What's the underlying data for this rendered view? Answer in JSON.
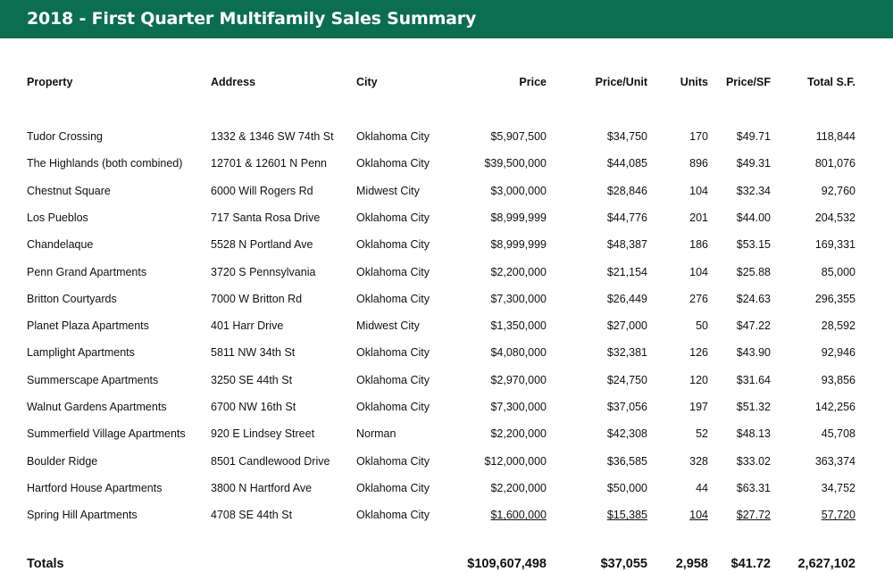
{
  "title": "2018 - First Quarter Multifamily Sales Summary",
  "colors": {
    "title_bar": "#0b6e4f",
    "title_text": "#ffffff"
  },
  "columns": {
    "property": "Property",
    "address": "Address",
    "city": "City",
    "price": "Price",
    "price_per_unit": "Price/Unit",
    "units": "Units",
    "price_per_sf": "Price/SF",
    "total_sf": "Total S.F."
  },
  "rows": [
    {
      "property": "Tudor Crossing",
      "address": "1332 & 1346 SW 74th St",
      "city": "Oklahoma City",
      "price": "$5,907,500",
      "price_per_unit": "$34,750",
      "units": "170",
      "price_per_sf": "$49.71",
      "total_sf": "118,844"
    },
    {
      "property": "The Highlands (both combined)",
      "address": "12701 & 12601 N Penn",
      "city": "Oklahoma City",
      "price": "$39,500,000",
      "price_per_unit": "$44,085",
      "units": "896",
      "price_per_sf": "$49.31",
      "total_sf": "801,076"
    },
    {
      "property": "Chestnut Square",
      "address": "6000 Will Rogers Rd",
      "city": "Midwest City",
      "price": "$3,000,000",
      "price_per_unit": "$28,846",
      "units": "104",
      "price_per_sf": "$32.34",
      "total_sf": "92,760"
    },
    {
      "property": "Los Pueblos",
      "address": "717 Santa Rosa Drive",
      "city": "Oklahoma City",
      "price": "$8,999,999",
      "price_per_unit": "$44,776",
      "units": "201",
      "price_per_sf": "$44.00",
      "total_sf": "204,532"
    },
    {
      "property": "Chandelaque",
      "address": "5528 N Portland Ave",
      "city": "Oklahoma City",
      "price": "$8,999,999",
      "price_per_unit": "$48,387",
      "units": "186",
      "price_per_sf": "$53.15",
      "total_sf": "169,331"
    },
    {
      "property": "Penn Grand Apartments",
      "address": "3720 S Pennsylvania",
      "city": "Oklahoma City",
      "price": "$2,200,000",
      "price_per_unit": "$21,154",
      "units": "104",
      "price_per_sf": "$25.88",
      "total_sf": "85,000"
    },
    {
      "property": "Britton Courtyards",
      "address": "7000 W Britton Rd",
      "city": "Oklahoma City",
      "price": "$7,300,000",
      "price_per_unit": "$26,449",
      "units": "276",
      "price_per_sf": "$24.63",
      "total_sf": "296,355"
    },
    {
      "property": "Planet Plaza Apartments",
      "address": "401 Harr Drive",
      "city": "Midwest City",
      "price": "$1,350,000",
      "price_per_unit": "$27,000",
      "units": "50",
      "price_per_sf": "$47.22",
      "total_sf": "28,592"
    },
    {
      "property": "Lamplight Apartments",
      "address": "5811 NW 34th St",
      "city": "Oklahoma City",
      "price": "$4,080,000",
      "price_per_unit": "$32,381",
      "units": "126",
      "price_per_sf": "$43.90",
      "total_sf": "92,946"
    },
    {
      "property": "Summerscape Apartments",
      "address": "3250 SE 44th St",
      "city": "Oklahoma City",
      "price": "$2,970,000",
      "price_per_unit": "$24,750",
      "units": "120",
      "price_per_sf": "$31.64",
      "total_sf": "93,856"
    },
    {
      "property": "Walnut Gardens Apartments",
      "address": "6700 NW 16th St",
      "city": "Oklahoma City",
      "price": "$7,300,000",
      "price_per_unit": "$37,056",
      "units": "197",
      "price_per_sf": "$51.32",
      "total_sf": "142,256"
    },
    {
      "property": "Summerfield Village Apartments",
      "address": "920 E Lindsey Street",
      "city": "Norman",
      "price": "$2,200,000",
      "price_per_unit": "$42,308",
      "units": "52",
      "price_per_sf": "$48.13",
      "total_sf": "45,708"
    },
    {
      "property": "Boulder Ridge",
      "address": "8501 Candlewood Drive",
      "city": "Oklahoma City",
      "price": "$12,000,000",
      "price_per_unit": "$36,585",
      "units": "328",
      "price_per_sf": "$33.02",
      "total_sf": "363,374"
    },
    {
      "property": "Hartford House Apartments",
      "address": "3800 N Hartford Ave",
      "city": "Oklahoma City",
      "price": "$2,200,000",
      "price_per_unit": "$50,000",
      "units": "44",
      "price_per_sf": "$63.31",
      "total_sf": "34,752"
    },
    {
      "property": "Spring Hill Apartments",
      "address": "4708 SE 44th St",
      "city": "Oklahoma City",
      "price": "$1,600,000",
      "price_per_unit": "$15,385",
      "units": "104",
      "price_per_sf": "$27.72",
      "total_sf": "57,720"
    }
  ],
  "totals": {
    "label": "Totals",
    "price": "$109,607,498",
    "price_per_unit": "$37,055",
    "units": "2,958",
    "price_per_sf": "$41.72",
    "total_sf": "2,627,102"
  }
}
